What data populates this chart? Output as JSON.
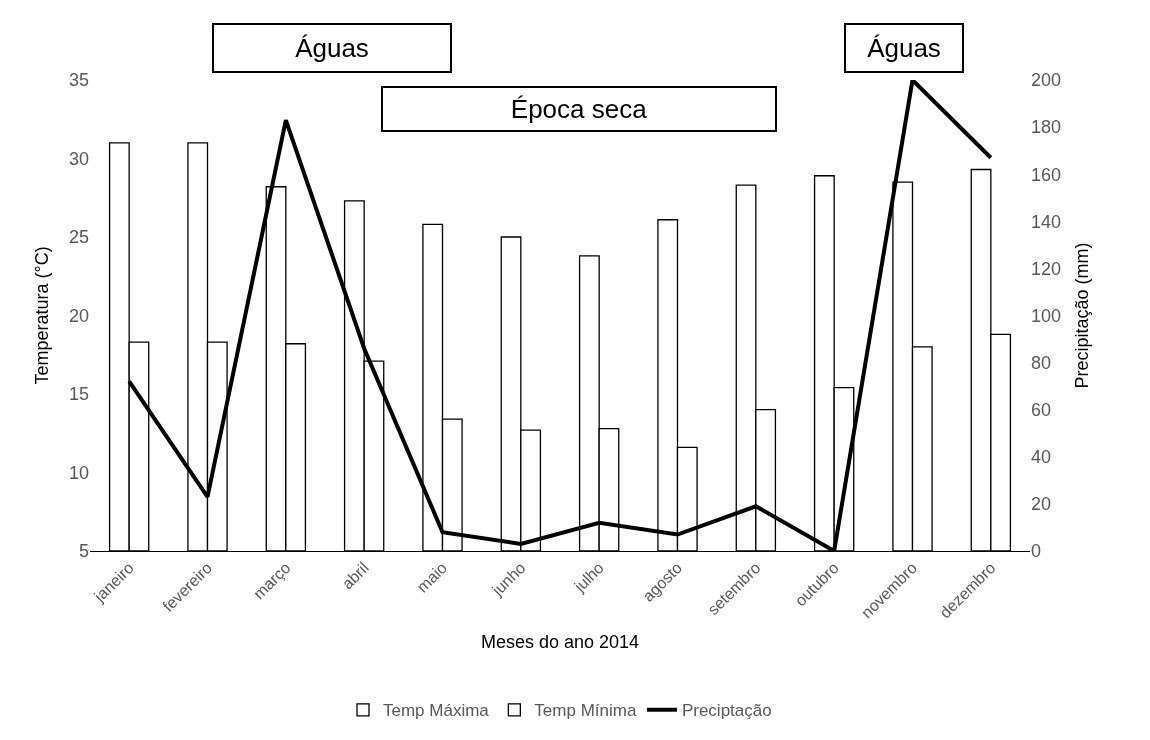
{
  "chart_data": {
    "type": "bar",
    "xlabel": "Meses do ano 2014",
    "ylabel": "Temperatura (°C)",
    "y2label": "Precipitação (mm)",
    "categories": [
      "janeiro",
      "fevereiro",
      "março",
      "abril",
      "maio",
      "junho",
      "julho",
      "agosto",
      "setembro",
      "outubro",
      "novembro",
      "dezembro"
    ],
    "series": [
      {
        "name": "Temp Máxima",
        "color": "#ffffff",
        "values": [
          31.0,
          31.0,
          28.2,
          27.3,
          25.8,
          25.0,
          23.8,
          26.1,
          28.3,
          28.9,
          28.5,
          29.3
        ]
      },
      {
        "name": "Temp Mínima",
        "color": "#ffffff",
        "values": [
          18.3,
          18.3,
          18.2,
          17.1,
          13.4,
          12.7,
          12.8,
          11.6,
          14.0,
          15.4,
          18.0,
          18.8
        ]
      },
      {
        "name": "Preciptação",
        "type": "line",
        "axis": "y2",
        "color": "#000000",
        "values": [
          72,
          23,
          183,
          86,
          8,
          3,
          12,
          7,
          19,
          0,
          200,
          167
        ]
      }
    ],
    "ylim": [
      5,
      35
    ],
    "yticks": [
      5,
      10,
      15,
      20,
      25,
      30,
      35
    ],
    "y2lim": [
      0,
      200
    ],
    "y2ticks": [
      0,
      20,
      40,
      60,
      80,
      100,
      120,
      140,
      160,
      180,
      200
    ],
    "annotations": [
      "Águas",
      "Época seca",
      "Águas"
    ],
    "legend": "bottom",
    "marker": "none",
    "line_style": "solid"
  }
}
